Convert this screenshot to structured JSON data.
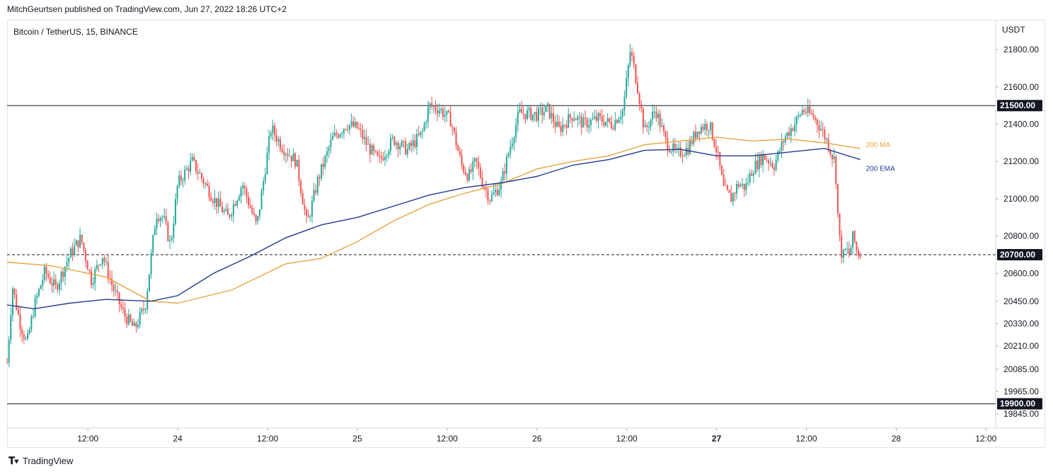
{
  "header": {
    "publisher_line": "MitchGeurtsen published on TradingView.com, Jun 27, 2022 18:26 UTC+2"
  },
  "symbol_line": "Bitcoin / TetherUS, 15, BINANCE",
  "footer": {
    "brand": "TradingView",
    "logo_icon": "tradingview-logo-icon"
  },
  "colors": {
    "up": "#26a69a",
    "down": "#ef5350",
    "ma": "#e7a33e",
    "ema": "#1e3c8f",
    "level": "#131722"
  },
  "chart_data": {
    "type": "candlestick",
    "title": "Bitcoin / TetherUS, 15, BINANCE",
    "currency_label": "USDT",
    "ylim": [
      19770,
      21960
    ],
    "y_ticks": [
      {
        "v": 21800,
        "label": "21800.00"
      },
      {
        "v": 21600,
        "label": "21600.00"
      },
      {
        "v": 21400,
        "label": "21400.00"
      },
      {
        "v": 21200,
        "label": "21200.00"
      },
      {
        "v": 21000,
        "label": "21000.00"
      },
      {
        "v": 20800,
        "label": "20800.00"
      },
      {
        "v": 20600,
        "label": "20600.00"
      },
      {
        "v": 20450,
        "label": "20450.00"
      },
      {
        "v": 20330,
        "label": "20330.00"
      },
      {
        "v": 20210,
        "label": "20210.00"
      },
      {
        "v": 20085,
        "label": "20085.00"
      },
      {
        "v": 19965,
        "label": "19965.00"
      },
      {
        "v": 19845,
        "label": "19845.00"
      }
    ],
    "x_range_days": [
      23.05,
      28.55
    ],
    "x_ticks": [
      {
        "t": 23.5,
        "label": "12:00",
        "bold": false
      },
      {
        "t": 24.0,
        "label": "24",
        "bold": false
      },
      {
        "t": 24.5,
        "label": "12:00",
        "bold": false
      },
      {
        "t": 25.0,
        "label": "25",
        "bold": false
      },
      {
        "t": 25.5,
        "label": "12:00",
        "bold": false
      },
      {
        "t": 26.0,
        "label": "26",
        "bold": false
      },
      {
        "t": 26.5,
        "label": "12:00",
        "bold": false
      },
      {
        "t": 27.0,
        "label": "27",
        "bold": true
      },
      {
        "t": 27.5,
        "label": "12:00",
        "bold": false
      },
      {
        "t": 28.0,
        "label": "28",
        "bold": false
      },
      {
        "t": 28.5,
        "label": "12:00",
        "bold": false
      }
    ],
    "levels": [
      {
        "value": 21500,
        "label": "21500.00",
        "style": "solid"
      },
      {
        "value": 20700,
        "label": "20700.00",
        "style": "dashed"
      },
      {
        "value": 19900,
        "label": "19900.00",
        "style": "solid"
      }
    ],
    "price_path": [
      {
        "t": 23.05,
        "p": 20120
      },
      {
        "t": 23.08,
        "p": 20530
      },
      {
        "t": 23.12,
        "p": 20340
      },
      {
        "t": 23.16,
        "p": 20220
      },
      {
        "t": 23.2,
        "p": 20420
      },
      {
        "t": 23.26,
        "p": 20610
      },
      {
        "t": 23.32,
        "p": 20520
      },
      {
        "t": 23.4,
        "p": 20700
      },
      {
        "t": 23.46,
        "p": 20790
      },
      {
        "t": 23.52,
        "p": 20560
      },
      {
        "t": 23.58,
        "p": 20700
      },
      {
        "t": 23.64,
        "p": 20520
      },
      {
        "t": 23.7,
        "p": 20380
      },
      {
        "t": 23.76,
        "p": 20300
      },
      {
        "t": 23.82,
        "p": 20430
      },
      {
        "t": 23.88,
        "p": 20920
      },
      {
        "t": 23.92,
        "p": 20900
      },
      {
        "t": 23.96,
        "p": 20750
      },
      {
        "t": 24.0,
        "p": 21080
      },
      {
        "t": 24.08,
        "p": 21200
      },
      {
        "t": 24.14,
        "p": 21100
      },
      {
        "t": 24.2,
        "p": 21000
      },
      {
        "t": 24.28,
        "p": 20900
      },
      {
        "t": 24.36,
        "p": 21080
      },
      {
        "t": 24.44,
        "p": 20850
      },
      {
        "t": 24.52,
        "p": 21380
      },
      {
        "t": 24.58,
        "p": 21280
      },
      {
        "t": 24.66,
        "p": 21200
      },
      {
        "t": 24.72,
        "p": 20860
      },
      {
        "t": 24.78,
        "p": 21100
      },
      {
        "t": 24.86,
        "p": 21320
      },
      {
        "t": 24.94,
        "p": 21400
      },
      {
        "t": 25.0,
        "p": 21380
      },
      {
        "t": 25.06,
        "p": 21280
      },
      {
        "t": 25.12,
        "p": 21200
      },
      {
        "t": 25.2,
        "p": 21320
      },
      {
        "t": 25.28,
        "p": 21260
      },
      {
        "t": 25.36,
        "p": 21350
      },
      {
        "t": 25.4,
        "p": 21500
      },
      {
        "t": 25.46,
        "p": 21480
      },
      {
        "t": 25.52,
        "p": 21420
      },
      {
        "t": 25.58,
        "p": 21180
      },
      {
        "t": 25.62,
        "p": 21120
      },
      {
        "t": 25.66,
        "p": 21200
      },
      {
        "t": 25.7,
        "p": 21080
      },
      {
        "t": 25.74,
        "p": 21000
      },
      {
        "t": 25.8,
        "p": 21080
      },
      {
        "t": 25.84,
        "p": 21240
      },
      {
        "t": 25.9,
        "p": 21460
      },
      {
        "t": 26.0,
        "p": 21450
      },
      {
        "t": 26.06,
        "p": 21480
      },
      {
        "t": 26.12,
        "p": 21370
      },
      {
        "t": 26.2,
        "p": 21450
      },
      {
        "t": 26.26,
        "p": 21400
      },
      {
        "t": 26.34,
        "p": 21430
      },
      {
        "t": 26.42,
        "p": 21400
      },
      {
        "t": 26.48,
        "p": 21480
      },
      {
        "t": 26.52,
        "p": 21800
      },
      {
        "t": 26.56,
        "p": 21600
      },
      {
        "t": 26.6,
        "p": 21360
      },
      {
        "t": 26.66,
        "p": 21480
      },
      {
        "t": 26.72,
        "p": 21300
      },
      {
        "t": 26.78,
        "p": 21240
      },
      {
        "t": 26.84,
        "p": 21270
      },
      {
        "t": 26.9,
        "p": 21380
      },
      {
        "t": 26.96,
        "p": 21400
      },
      {
        "t": 27.0,
        "p": 21260
      },
      {
        "t": 27.04,
        "p": 21050
      },
      {
        "t": 27.08,
        "p": 21000
      },
      {
        "t": 27.12,
        "p": 21080
      },
      {
        "t": 27.16,
        "p": 21060
      },
      {
        "t": 27.2,
        "p": 21160
      },
      {
        "t": 27.26,
        "p": 21230
      },
      {
        "t": 27.32,
        "p": 21180
      },
      {
        "t": 27.38,
        "p": 21330
      },
      {
        "t": 27.44,
        "p": 21410
      },
      {
        "t": 27.48,
        "p": 21480
      },
      {
        "t": 27.54,
        "p": 21440
      },
      {
        "t": 27.58,
        "p": 21380
      },
      {
        "t": 27.62,
        "p": 21300
      },
      {
        "t": 27.64,
        "p": 21240
      },
      {
        "t": 27.66,
        "p": 21200
      },
      {
        "t": 27.68,
        "p": 20820
      },
      {
        "t": 27.7,
        "p": 20680
      },
      {
        "t": 27.72,
        "p": 20730
      },
      {
        "t": 27.74,
        "p": 20700
      },
      {
        "t": 27.76,
        "p": 20800
      },
      {
        "t": 27.78,
        "p": 20720
      },
      {
        "t": 27.8,
        "p": 20700
      }
    ],
    "series": [
      {
        "name": "200 MA",
        "color": "#e7a33e",
        "points": [
          {
            "t": 23.05,
            "v": 20660
          },
          {
            "t": 23.3,
            "v": 20640
          },
          {
            "t": 23.6,
            "v": 20580
          },
          {
            "t": 23.85,
            "v": 20450
          },
          {
            "t": 24.0,
            "v": 20440
          },
          {
            "t": 24.3,
            "v": 20510
          },
          {
            "t": 24.6,
            "v": 20650
          },
          {
            "t": 24.8,
            "v": 20680
          },
          {
            "t": 25.0,
            "v": 20770
          },
          {
            "t": 25.2,
            "v": 20880
          },
          {
            "t": 25.4,
            "v": 20970
          },
          {
            "t": 25.6,
            "v": 21030
          },
          {
            "t": 25.8,
            "v": 21080
          },
          {
            "t": 26.0,
            "v": 21160
          },
          {
            "t": 26.2,
            "v": 21200
          },
          {
            "t": 26.4,
            "v": 21230
          },
          {
            "t": 26.6,
            "v": 21290
          },
          {
            "t": 26.8,
            "v": 21310
          },
          {
            "t": 27.0,
            "v": 21330
          },
          {
            "t": 27.2,
            "v": 21310
          },
          {
            "t": 27.4,
            "v": 21320
          },
          {
            "t": 27.6,
            "v": 21300
          },
          {
            "t": 27.8,
            "v": 21270
          }
        ]
      },
      {
        "name": "200 EMA",
        "color": "#1e3c8f",
        "points": [
          {
            "t": 23.05,
            "v": 20430
          },
          {
            "t": 23.2,
            "v": 20410
          },
          {
            "t": 23.4,
            "v": 20440
          },
          {
            "t": 23.6,
            "v": 20460
          },
          {
            "t": 23.85,
            "v": 20450
          },
          {
            "t": 24.0,
            "v": 20480
          },
          {
            "t": 24.2,
            "v": 20600
          },
          {
            "t": 24.4,
            "v": 20690
          },
          {
            "t": 24.6,
            "v": 20790
          },
          {
            "t": 24.8,
            "v": 20860
          },
          {
            "t": 25.0,
            "v": 20900
          },
          {
            "t": 25.2,
            "v": 20960
          },
          {
            "t": 25.4,
            "v": 21020
          },
          {
            "t": 25.6,
            "v": 21060
          },
          {
            "t": 25.8,
            "v": 21085
          },
          {
            "t": 26.0,
            "v": 21120
          },
          {
            "t": 26.2,
            "v": 21180
          },
          {
            "t": 26.4,
            "v": 21210
          },
          {
            "t": 26.6,
            "v": 21260
          },
          {
            "t": 26.8,
            "v": 21265
          },
          {
            "t": 27.0,
            "v": 21230
          },
          {
            "t": 27.2,
            "v": 21230
          },
          {
            "t": 27.4,
            "v": 21250
          },
          {
            "t": 27.6,
            "v": 21270
          },
          {
            "t": 27.8,
            "v": 21210
          }
        ]
      }
    ],
    "legend": [
      {
        "label": "200 MA",
        "color": "#e7a33e"
      },
      {
        "label": "200 EMA",
        "color": "#1e3c8f"
      }
    ]
  }
}
